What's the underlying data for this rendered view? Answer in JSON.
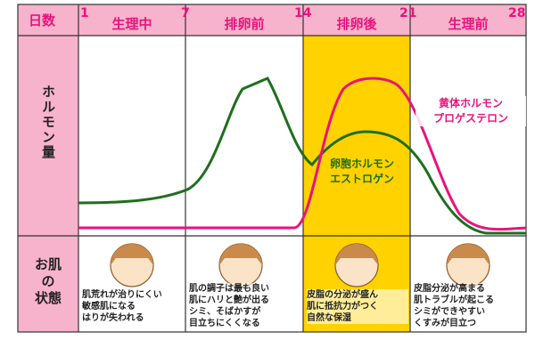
{
  "header": {
    "days_label": "日数",
    "day_numbers": [
      "1",
      "7",
      "14",
      "21",
      "28"
    ],
    "phases": [
      "生理中",
      "排卵前",
      "排卵後",
      "生理前"
    ]
  },
  "hormone_row": {
    "label": "ホルモン量",
    "progesterone_label": [
      "黄体ホルモン",
      "プロゲステロン"
    ],
    "estrogen_label": [
      "卵胞ホルモン",
      "エストロゲン"
    ]
  },
  "skin_row": {
    "label": [
      "お肌",
      "の",
      "状態"
    ],
    "phases": [
      [
        "肌荒れが治りにくい",
        "敏感肌になる",
        "はりが失われる"
      ],
      [
        "肌の調子は最も良い",
        "肌にハリと艶が出る",
        "シミ、そばかすが",
        "目立ちにくくなる"
      ],
      [
        "皮脂の分泌が盛ん",
        "肌に抵抗力がつく",
        "自然な保湿"
      ],
      [
        "皮脂分泌が高まる",
        "肌トラブルが起こる",
        "シミができやすい",
        "くすみが目立つ"
      ]
    ]
  }
}
